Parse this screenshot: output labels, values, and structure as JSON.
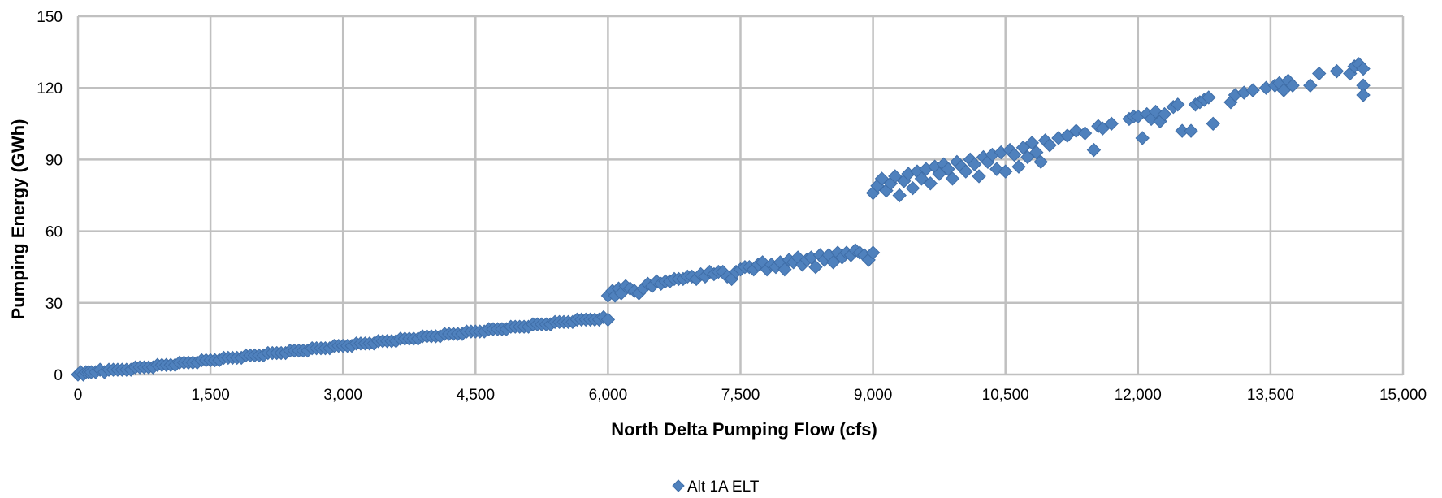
{
  "chart_data": {
    "type": "scatter",
    "xlabel": "North Delta Pumping Flow (cfs)",
    "ylabel": "Pumping Energy (GWh)",
    "xlim": [
      0,
      15000
    ],
    "ylim": [
      0,
      150
    ],
    "x_ticks": [
      "0",
      "1,500",
      "3,000",
      "4,500",
      "6,000",
      "7,500",
      "9,000",
      "10,500",
      "12,000",
      "13,500",
      "15,000"
    ],
    "y_ticks": [
      "0",
      "30",
      "60",
      "90",
      "120",
      "150"
    ],
    "grid": true,
    "legend_position": "bottom-center",
    "colors": {
      "series": "#4f81bd",
      "grid": "#c0c0c0",
      "axis": "#a6a6a6"
    },
    "series": [
      {
        "name": "Alt 1A ELT",
        "marker": "diamond",
        "points": [
          [
            0,
            0
          ],
          [
            30,
            1
          ],
          [
            60,
            0
          ],
          [
            90,
            1
          ],
          [
            120,
            1
          ],
          [
            150,
            1
          ],
          [
            200,
            1
          ],
          [
            250,
            2
          ],
          [
            300,
            1
          ],
          [
            350,
            2
          ],
          [
            400,
            2
          ],
          [
            450,
            2
          ],
          [
            500,
            2
          ],
          [
            550,
            2
          ],
          [
            600,
            2
          ],
          [
            650,
            3
          ],
          [
            700,
            3
          ],
          [
            750,
            3
          ],
          [
            800,
            3
          ],
          [
            850,
            3
          ],
          [
            900,
            4
          ],
          [
            950,
            4
          ],
          [
            1000,
            4
          ],
          [
            1050,
            4
          ],
          [
            1100,
            4
          ],
          [
            1150,
            5
          ],
          [
            1200,
            5
          ],
          [
            1250,
            5
          ],
          [
            1300,
            5
          ],
          [
            1350,
            5
          ],
          [
            1400,
            6
          ],
          [
            1450,
            6
          ],
          [
            1500,
            6
          ],
          [
            1550,
            6
          ],
          [
            1600,
            6
          ],
          [
            1650,
            7
          ],
          [
            1700,
            7
          ],
          [
            1750,
            7
          ],
          [
            1800,
            7
          ],
          [
            1850,
            7
          ],
          [
            1900,
            8
          ],
          [
            1950,
            8
          ],
          [
            2000,
            8
          ],
          [
            2050,
            8
          ],
          [
            2100,
            8
          ],
          [
            2150,
            9
          ],
          [
            2200,
            9
          ],
          [
            2250,
            9
          ],
          [
            2300,
            9
          ],
          [
            2350,
            9
          ],
          [
            2400,
            10
          ],
          [
            2450,
            10
          ],
          [
            2500,
            10
          ],
          [
            2550,
            10
          ],
          [
            2600,
            10
          ],
          [
            2650,
            11
          ],
          [
            2700,
            11
          ],
          [
            2750,
            11
          ],
          [
            2800,
            11
          ],
          [
            2850,
            11
          ],
          [
            2900,
            12
          ],
          [
            2950,
            12
          ],
          [
            3000,
            12
          ],
          [
            3050,
            12
          ],
          [
            3100,
            12
          ],
          [
            3150,
            13
          ],
          [
            3200,
            13
          ],
          [
            3250,
            13
          ],
          [
            3300,
            13
          ],
          [
            3350,
            13
          ],
          [
            3400,
            14
          ],
          [
            3450,
            14
          ],
          [
            3500,
            14
          ],
          [
            3550,
            14
          ],
          [
            3600,
            14
          ],
          [
            3650,
            15
          ],
          [
            3700,
            15
          ],
          [
            3750,
            15
          ],
          [
            3800,
            15
          ],
          [
            3850,
            15
          ],
          [
            3900,
            16
          ],
          [
            3950,
            16
          ],
          [
            4000,
            16
          ],
          [
            4050,
            16
          ],
          [
            4100,
            16
          ],
          [
            4150,
            17
          ],
          [
            4200,
            17
          ],
          [
            4250,
            17
          ],
          [
            4300,
            17
          ],
          [
            4350,
            17
          ],
          [
            4400,
            18
          ],
          [
            4450,
            18
          ],
          [
            4500,
            18
          ],
          [
            4550,
            18
          ],
          [
            4600,
            18
          ],
          [
            4650,
            19
          ],
          [
            4700,
            19
          ],
          [
            4750,
            19
          ],
          [
            4800,
            19
          ],
          [
            4850,
            19
          ],
          [
            4900,
            20
          ],
          [
            4950,
            20
          ],
          [
            5000,
            20
          ],
          [
            5050,
            20
          ],
          [
            5100,
            20
          ],
          [
            5150,
            21
          ],
          [
            5200,
            21
          ],
          [
            5250,
            21
          ],
          [
            5300,
            21
          ],
          [
            5350,
            21
          ],
          [
            5400,
            22
          ],
          [
            5450,
            22
          ],
          [
            5500,
            22
          ],
          [
            5550,
            22
          ],
          [
            5600,
            22
          ],
          [
            5650,
            23
          ],
          [
            5700,
            23
          ],
          [
            5750,
            23
          ],
          [
            5800,
            23
          ],
          [
            5850,
            23
          ],
          [
            5900,
            23
          ],
          [
            5950,
            24
          ],
          [
            6000,
            23
          ],
          [
            6000,
            33
          ],
          [
            6050,
            35
          ],
          [
            6080,
            33
          ],
          [
            6120,
            36
          ],
          [
            6150,
            34
          ],
          [
            6200,
            37
          ],
          [
            6250,
            36
          ],
          [
            6300,
            35
          ],
          [
            6350,
            34
          ],
          [
            6400,
            36
          ],
          [
            6450,
            38
          ],
          [
            6500,
            37
          ],
          [
            6550,
            39
          ],
          [
            6600,
            38
          ],
          [
            6650,
            39
          ],
          [
            6700,
            39
          ],
          [
            6750,
            40
          ],
          [
            6800,
            40
          ],
          [
            6850,
            40
          ],
          [
            6900,
            41
          ],
          [
            6950,
            41
          ],
          [
            7000,
            40
          ],
          [
            7050,
            42
          ],
          [
            7100,
            41
          ],
          [
            7150,
            43
          ],
          [
            7200,
            42
          ],
          [
            7250,
            43
          ],
          [
            7300,
            43
          ],
          [
            7350,
            41
          ],
          [
            7400,
            40
          ],
          [
            7450,
            43
          ],
          [
            7500,
            44
          ],
          [
            7550,
            45
          ],
          [
            7600,
            45
          ],
          [
            7650,
            44
          ],
          [
            7700,
            46
          ],
          [
            7750,
            47
          ],
          [
            7800,
            44
          ],
          [
            7850,
            46
          ],
          [
            7900,
            45
          ],
          [
            7950,
            47
          ],
          [
            8000,
            44
          ],
          [
            8050,
            48
          ],
          [
            8100,
            47
          ],
          [
            8150,
            49
          ],
          [
            8200,
            46
          ],
          [
            8250,
            48
          ],
          [
            8300,
            49
          ],
          [
            8350,
            45
          ],
          [
            8400,
            50
          ],
          [
            8450,
            48
          ],
          [
            8500,
            50
          ],
          [
            8550,
            47
          ],
          [
            8600,
            51
          ],
          [
            8650,
            49
          ],
          [
            8700,
            51
          ],
          [
            8750,
            50
          ],
          [
            8800,
            52
          ],
          [
            8850,
            51
          ],
          [
            8900,
            50
          ],
          [
            8950,
            48
          ],
          [
            9000,
            51
          ],
          [
            9000,
            76
          ],
          [
            9050,
            79
          ],
          [
            9100,
            82
          ],
          [
            9150,
            77
          ],
          [
            9200,
            80
          ],
          [
            9250,
            83
          ],
          [
            9300,
            75
          ],
          [
            9350,
            81
          ],
          [
            9400,
            84
          ],
          [
            9450,
            78
          ],
          [
            9500,
            85
          ],
          [
            9550,
            82
          ],
          [
            9600,
            86
          ],
          [
            9650,
            80
          ],
          [
            9700,
            87
          ],
          [
            9750,
            84
          ],
          [
            9800,
            88
          ],
          [
            9850,
            86
          ],
          [
            9900,
            82
          ],
          [
            9950,
            89
          ],
          [
            10000,
            87
          ],
          [
            10050,
            85
          ],
          [
            10100,
            90
          ],
          [
            10150,
            88
          ],
          [
            10200,
            83
          ],
          [
            10250,
            91
          ],
          [
            10300,
            89
          ],
          [
            10350,
            92
          ],
          [
            10400,
            86
          ],
          [
            10450,
            93
          ],
          [
            10500,
            85
          ],
          [
            10550,
            94
          ],
          [
            10600,
            92
          ],
          [
            10650,
            87
          ],
          [
            10700,
            95
          ],
          [
            10750,
            91
          ],
          [
            10800,
            97
          ],
          [
            10850,
            93
          ],
          [
            10900,
            89
          ],
          [
            10950,
            98
          ],
          [
            11000,
            96
          ],
          [
            11100,
            99
          ],
          [
            11200,
            100
          ],
          [
            11300,
            102
          ],
          [
            11400,
            101
          ],
          [
            11500,
            94
          ],
          [
            11550,
            104
          ],
          [
            11600,
            103
          ],
          [
            11700,
            105
          ],
          [
            11900,
            107
          ],
          [
            11950,
            108
          ],
          [
            12000,
            108
          ],
          [
            12050,
            99
          ],
          [
            12100,
            109
          ],
          [
            12150,
            107
          ],
          [
            12200,
            110
          ],
          [
            12250,
            106
          ],
          [
            12300,
            109
          ],
          [
            12400,
            112
          ],
          [
            12450,
            113
          ],
          [
            12500,
            102
          ],
          [
            12600,
            102
          ],
          [
            12650,
            113
          ],
          [
            12700,
            114
          ],
          [
            12750,
            115
          ],
          [
            12800,
            116
          ],
          [
            12850,
            105
          ],
          [
            13050,
            114
          ],
          [
            13100,
            117
          ],
          [
            13200,
            118
          ],
          [
            13300,
            119
          ],
          [
            13450,
            120
          ],
          [
            13550,
            121
          ],
          [
            13600,
            122
          ],
          [
            13650,
            119
          ],
          [
            13700,
            123
          ],
          [
            13750,
            121
          ],
          [
            13950,
            121
          ],
          [
            14050,
            126
          ],
          [
            14250,
            127
          ],
          [
            14400,
            126
          ],
          [
            14450,
            129
          ],
          [
            14500,
            130
          ],
          [
            14550,
            128
          ],
          [
            14550,
            121
          ],
          [
            14550,
            117
          ]
        ]
      }
    ]
  }
}
